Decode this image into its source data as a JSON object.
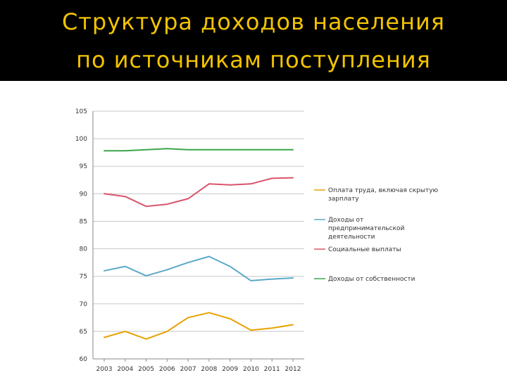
{
  "slide": {
    "title_line1": "Структура доходов населения",
    "title_line2": "по источникам поступления",
    "title_color": "#f2c300",
    "band_color": "#000000"
  },
  "chart_data": {
    "type": "line",
    "title": "",
    "xlabel": "",
    "ylabel": "",
    "x": [
      "2003",
      "2004",
      "2005",
      "2006",
      "2007",
      "2008",
      "2009",
      "2010",
      "2011",
      "2012"
    ],
    "ylim": [
      60,
      105
    ],
    "yticks": [
      60,
      65,
      70,
      75,
      80,
      85,
      90,
      95,
      100,
      105
    ],
    "grid": true,
    "legend_position": "right",
    "series": [
      {
        "name": "Оплата труда, включая скрытую зарплату",
        "legend_lines": [
          "Оплата труда, включая скрытую",
          "зарплату"
        ],
        "color": "#e8a200",
        "values": [
          63.9,
          65.0,
          63.6,
          65.0,
          67.5,
          68.4,
          67.3,
          65.2,
          65.6,
          66.2
        ]
      },
      {
        "name": "Доходы от предпринимательской деятельности",
        "legend_lines": [
          "Доходы от",
          "предпринимательской",
          "деятельности"
        ],
        "color": "#5aa9c8",
        "values": [
          76.0,
          76.8,
          75.1,
          76.2,
          77.5,
          78.6,
          76.8,
          74.2,
          74.5,
          74.7
        ]
      },
      {
        "name": "Социальные выплаты",
        "legend_lines": [
          "Социальные выплаты"
        ],
        "color": "#d9546c",
        "values": [
          90.0,
          89.5,
          87.7,
          88.1,
          89.1,
          91.8,
          91.6,
          91.8,
          92.8,
          92.9
        ]
      },
      {
        "name": "Доходы от собственности",
        "legend_lines": [
          "Доходы от собственности"
        ],
        "color": "#3aa64a",
        "values": [
          97.8,
          97.8,
          98.0,
          98.2,
          98.0,
          98.0,
          98.0,
          98.0,
          98.0,
          98.0
        ]
      }
    ]
  }
}
